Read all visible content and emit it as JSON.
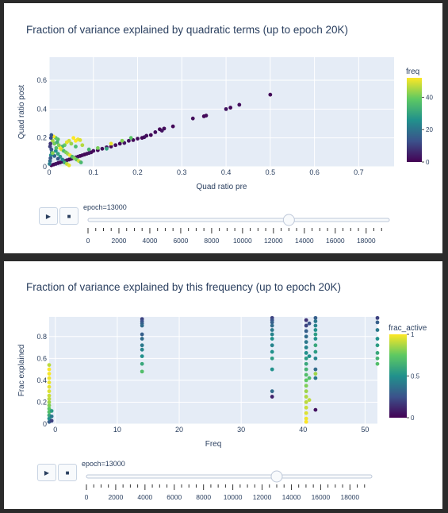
{
  "panels": [
    {
      "title": "Fraction of variance explained by quadratic terms (up to epoch 20K)",
      "slider": {
        "label_prefix": "epoch=",
        "value": 13000,
        "ticks": [
          "0",
          "2000",
          "4000",
          "6000",
          "8000",
          "10000",
          "12000",
          "14000",
          "16000",
          "18000"
        ]
      },
      "buttons": {
        "play": "▶",
        "pause": "■"
      }
    },
    {
      "title": "Fraction of variance explained by this frequency (up to epoch 20K)",
      "slider": {
        "label_prefix": "epoch=",
        "value": 13000,
        "ticks": [
          "0",
          "2000",
          "4000",
          "6000",
          "8000",
          "10000",
          "12000",
          "14000",
          "16000",
          "18000"
        ]
      },
      "buttons": {
        "play": "▶",
        "pause": "■"
      }
    }
  ],
  "chart_data": [
    {
      "type": "scatter",
      "title": "Fraction of variance explained by quadratic terms (up to epoch 20K)",
      "xlabel": "Quad ratio pre",
      "ylabel": "Quad ratio post",
      "xlim": [
        0,
        0.78
      ],
      "ylim": [
        0,
        0.76
      ],
      "xticks": [
        0,
        0.1,
        0.2,
        0.3,
        0.4,
        0.5,
        0.6,
        0.7
      ],
      "xtick_labels": [
        "0",
        "0.1",
        "0.2",
        "0.3",
        "0.4",
        "0.5",
        "0.6",
        "0.7"
      ],
      "yticks": [
        0,
        0.2,
        0.4,
        0.6
      ],
      "ytick_labels": [
        "0",
        "0.2",
        "0.4",
        "0.6"
      ],
      "grid": true,
      "colorbar": {
        "title": "freq",
        "range": [
          0,
          52
        ],
        "ticks": [
          0,
          20,
          40
        ],
        "tick_labels": [
          "0",
          "20",
          "40"
        ],
        "colorscale": "viridis"
      },
      "points": [
        {
          "x": 0.5,
          "y": 0.5,
          "c": 1
        },
        {
          "x": 0.43,
          "y": 0.43,
          "c": 2
        },
        {
          "x": 0.41,
          "y": 0.41,
          "c": 1
        },
        {
          "x": 0.4,
          "y": 0.4,
          "c": 3
        },
        {
          "x": 0.355,
          "y": 0.355,
          "c": 2
        },
        {
          "x": 0.35,
          "y": 0.35,
          "c": 1
        },
        {
          "x": 0.325,
          "y": 0.335,
          "c": 2
        },
        {
          "x": 0.28,
          "y": 0.28,
          "c": 1
        },
        {
          "x": 0.26,
          "y": 0.265,
          "c": 2
        },
        {
          "x": 0.255,
          "y": 0.25,
          "c": 3
        },
        {
          "x": 0.25,
          "y": 0.26,
          "c": 1
        },
        {
          "x": 0.24,
          "y": 0.24,
          "c": 2
        },
        {
          "x": 0.23,
          "y": 0.22,
          "c": 1
        },
        {
          "x": 0.22,
          "y": 0.215,
          "c": 2
        },
        {
          "x": 0.215,
          "y": 0.205,
          "c": 3
        },
        {
          "x": 0.21,
          "y": 0.2,
          "c": 1
        },
        {
          "x": 0.2,
          "y": 0.195,
          "c": 2
        },
        {
          "x": 0.19,
          "y": 0.185,
          "c": 1
        },
        {
          "x": 0.18,
          "y": 0.18,
          "c": 2
        },
        {
          "x": 0.17,
          "y": 0.165,
          "c": 3
        },
        {
          "x": 0.16,
          "y": 0.16,
          "c": 1
        },
        {
          "x": 0.15,
          "y": 0.15,
          "c": 2
        },
        {
          "x": 0.14,
          "y": 0.14,
          "c": 1
        },
        {
          "x": 0.13,
          "y": 0.135,
          "c": 3
        },
        {
          "x": 0.12,
          "y": 0.125,
          "c": 2
        },
        {
          "x": 0.11,
          "y": 0.115,
          "c": 1
        },
        {
          "x": 0.1,
          "y": 0.11,
          "c": 2
        },
        {
          "x": 0.095,
          "y": 0.1,
          "c": 1
        },
        {
          "x": 0.09,
          "y": 0.095,
          "c": 3
        },
        {
          "x": 0.085,
          "y": 0.09,
          "c": 2
        },
        {
          "x": 0.08,
          "y": 0.085,
          "c": 1
        },
        {
          "x": 0.075,
          "y": 0.08,
          "c": 2
        },
        {
          "x": 0.07,
          "y": 0.075,
          "c": 1
        },
        {
          "x": 0.065,
          "y": 0.07,
          "c": 3
        },
        {
          "x": 0.06,
          "y": 0.065,
          "c": 2
        },
        {
          "x": 0.055,
          "y": 0.06,
          "c": 1
        },
        {
          "x": 0.05,
          "y": 0.055,
          "c": 2
        },
        {
          "x": 0.045,
          "y": 0.05,
          "c": 1
        },
        {
          "x": 0.04,
          "y": 0.045,
          "c": 3
        },
        {
          "x": 0.035,
          "y": 0.04,
          "c": 2
        },
        {
          "x": 0.03,
          "y": 0.035,
          "c": 1
        },
        {
          "x": 0.025,
          "y": 0.03,
          "c": 2
        },
        {
          "x": 0.02,
          "y": 0.025,
          "c": 1
        },
        {
          "x": 0.015,
          "y": 0.02,
          "c": 3
        },
        {
          "x": 0.01,
          "y": 0.015,
          "c": 2
        },
        {
          "x": 0.005,
          "y": 0.01,
          "c": 1
        },
        {
          "x": 0.11,
          "y": 0.13,
          "c": 41
        },
        {
          "x": 0.09,
          "y": 0.12,
          "c": 35
        },
        {
          "x": 0.13,
          "y": 0.125,
          "c": 30
        },
        {
          "x": 0.165,
          "y": 0.18,
          "c": 42
        },
        {
          "x": 0.185,
          "y": 0.2,
          "c": 38
        },
        {
          "x": 0.14,
          "y": 0.16,
          "c": 50
        },
        {
          "x": 0.075,
          "y": 0.15,
          "c": 46
        },
        {
          "x": 0.06,
          "y": 0.14,
          "c": 36
        },
        {
          "x": 0.05,
          "y": 0.16,
          "c": 44
        },
        {
          "x": 0.045,
          "y": 0.18,
          "c": 48
        },
        {
          "x": 0.04,
          "y": 0.17,
          "c": 50
        },
        {
          "x": 0.035,
          "y": 0.15,
          "c": 40
        },
        {
          "x": 0.03,
          "y": 0.14,
          "c": 34
        },
        {
          "x": 0.025,
          "y": 0.13,
          "c": 52
        },
        {
          "x": 0.02,
          "y": 0.19,
          "c": 37
        },
        {
          "x": 0.015,
          "y": 0.2,
          "c": 39
        },
        {
          "x": 0.01,
          "y": 0.21,
          "c": 52
        },
        {
          "x": 0.008,
          "y": 0.18,
          "c": 45
        },
        {
          "x": 0.012,
          "y": 0.16,
          "c": 41
        },
        {
          "x": 0.018,
          "y": 0.17,
          "c": 33
        },
        {
          "x": 0.022,
          "y": 0.15,
          "c": 42
        },
        {
          "x": 0.028,
          "y": 0.12,
          "c": 49
        },
        {
          "x": 0.033,
          "y": 0.11,
          "c": 35
        },
        {
          "x": 0.038,
          "y": 0.1,
          "c": 41
        },
        {
          "x": 0.042,
          "y": 0.09,
          "c": 44
        },
        {
          "x": 0.047,
          "y": 0.08,
          "c": 51
        },
        {
          "x": 0.052,
          "y": 0.07,
          "c": 36
        },
        {
          "x": 0.057,
          "y": 0.06,
          "c": 42
        },
        {
          "x": 0.062,
          "y": 0.05,
          "c": 40
        },
        {
          "x": 0.067,
          "y": 0.04,
          "c": 48
        },
        {
          "x": 0.072,
          "y": 0.03,
          "c": 35
        },
        {
          "x": 0.005,
          "y": 0.12,
          "c": 14
        },
        {
          "x": 0.006,
          "y": 0.1,
          "c": 20
        },
        {
          "x": 0.004,
          "y": 0.08,
          "c": 25
        },
        {
          "x": 0.003,
          "y": 0.06,
          "c": 14
        },
        {
          "x": 0.002,
          "y": 0.04,
          "c": 18
        },
        {
          "x": 0.001,
          "y": 0.02,
          "c": 22
        },
        {
          "x": 0.002,
          "y": 0.14,
          "c": 10
        },
        {
          "x": 0.003,
          "y": 0.16,
          "c": 8
        },
        {
          "x": 0.004,
          "y": 0.2,
          "c": 12
        },
        {
          "x": 0.005,
          "y": 0.22,
          "c": 14
        },
        {
          "x": 0.015,
          "y": 0.11,
          "c": 26
        },
        {
          "x": 0.02,
          "y": 0.09,
          "c": 30
        },
        {
          "x": 0.025,
          "y": 0.07,
          "c": 28
        },
        {
          "x": 0.03,
          "y": 0.05,
          "c": 24
        },
        {
          "x": 0.035,
          "y": 0.03,
          "c": 32
        },
        {
          "x": 0.04,
          "y": 0.02,
          "c": 46
        },
        {
          "x": 0.045,
          "y": 0.01,
          "c": 50
        },
        {
          "x": 0.06,
          "y": 0.18,
          "c": 52
        },
        {
          "x": 0.065,
          "y": 0.19,
          "c": 51
        },
        {
          "x": 0.07,
          "y": 0.185,
          "c": 49
        },
        {
          "x": 0.055,
          "y": 0.2,
          "c": 52
        },
        {
          "x": 0.02,
          "y": 0.055,
          "c": 14
        },
        {
          "x": 0.012,
          "y": 0.075,
          "c": 17
        },
        {
          "x": 0.008,
          "y": 0.095,
          "c": 42
        },
        {
          "x": 0.016,
          "y": 0.13,
          "c": 36
        }
      ]
    },
    {
      "type": "scatter",
      "title": "Fraction of variance explained by this frequency (up to epoch 20K)",
      "xlabel": "Freq",
      "ylabel": "Frac explained",
      "xlim": [
        -1,
        52
      ],
      "ylim": [
        0,
        0.98
      ],
      "xticks": [
        0,
        10,
        20,
        30,
        40,
        50
      ],
      "xtick_labels": [
        "0",
        "10",
        "20",
        "30",
        "40",
        "50"
      ],
      "yticks": [
        0,
        0.2,
        0.4,
        0.6,
        0.8
      ],
      "ytick_labels": [
        "0",
        "0.2",
        "0.4",
        "0.6",
        "0.8"
      ],
      "grid": true,
      "colorbar": {
        "title": "frac_active",
        "range": [
          0,
          1
        ],
        "ticks": [
          0,
          0.5,
          1
        ],
        "tick_labels": [
          "0",
          "0.5",
          "1"
        ],
        "colorscale": "viridis"
      },
      "points": [
        {
          "x": -1,
          "y": 0.02,
          "c": 0.3
        },
        {
          "x": -1,
          "y": 0.05,
          "c": 0.5
        },
        {
          "x": -1,
          "y": 0.08,
          "c": 0.6
        },
        {
          "x": -1,
          "y": 0.11,
          "c": 0.7
        },
        {
          "x": -1,
          "y": 0.14,
          "c": 0.75
        },
        {
          "x": -1,
          "y": 0.17,
          "c": 0.8
        },
        {
          "x": -1,
          "y": 0.2,
          "c": 0.85
        },
        {
          "x": -1,
          "y": 0.23,
          "c": 0.9
        },
        {
          "x": -1,
          "y": 0.26,
          "c": 0.92
        },
        {
          "x": -1,
          "y": 0.3,
          "c": 0.95
        },
        {
          "x": -1,
          "y": 0.34,
          "c": 0.96
        },
        {
          "x": -1,
          "y": 0.38,
          "c": 0.97
        },
        {
          "x": -1,
          "y": 0.42,
          "c": 0.98
        },
        {
          "x": -1,
          "y": 0.46,
          "c": 0.99
        },
        {
          "x": -1,
          "y": 0.5,
          "c": 1
        },
        {
          "x": -1,
          "y": 0.54,
          "c": 0.9
        },
        {
          "x": -0.6,
          "y": 0.03,
          "c": 0.2
        },
        {
          "x": -0.6,
          "y": 0.07,
          "c": 0.4
        },
        {
          "x": -0.6,
          "y": 0.12,
          "c": 0.55
        },
        {
          "x": 14,
          "y": 0.96,
          "c": 0.2
        },
        {
          "x": 14,
          "y": 0.94,
          "c": 0.25
        },
        {
          "x": 14,
          "y": 0.92,
          "c": 0.3
        },
        {
          "x": 14,
          "y": 0.9,
          "c": 0.35
        },
        {
          "x": 14,
          "y": 0.82,
          "c": 0.3
        },
        {
          "x": 14,
          "y": 0.78,
          "c": 0.35
        },
        {
          "x": 14,
          "y": 0.72,
          "c": 0.4
        },
        {
          "x": 14,
          "y": 0.68,
          "c": 0.45
        },
        {
          "x": 14,
          "y": 0.62,
          "c": 0.5
        },
        {
          "x": 14,
          "y": 0.55,
          "c": 0.6
        },
        {
          "x": 14,
          "y": 0.48,
          "c": 0.7
        },
        {
          "x": 35,
          "y": 0.97,
          "c": 0.2
        },
        {
          "x": 35,
          "y": 0.95,
          "c": 0.25
        },
        {
          "x": 35,
          "y": 0.93,
          "c": 0.3
        },
        {
          "x": 35,
          "y": 0.9,
          "c": 0.35
        },
        {
          "x": 35,
          "y": 0.86,
          "c": 0.4
        },
        {
          "x": 35,
          "y": 0.82,
          "c": 0.45
        },
        {
          "x": 35,
          "y": 0.78,
          "c": 0.5
        },
        {
          "x": 35,
          "y": 0.72,
          "c": 0.45
        },
        {
          "x": 35,
          "y": 0.66,
          "c": 0.5
        },
        {
          "x": 35,
          "y": 0.6,
          "c": 0.55
        },
        {
          "x": 35,
          "y": 0.5,
          "c": 0.5
        },
        {
          "x": 35,
          "y": 0.3,
          "c": 0.35
        },
        {
          "x": 35,
          "y": 0.25,
          "c": 0.1
        },
        {
          "x": 40.5,
          "y": 0.95,
          "c": 0.15
        },
        {
          "x": 40.5,
          "y": 0.9,
          "c": 0.2
        },
        {
          "x": 40.5,
          "y": 0.85,
          "c": 0.3
        },
        {
          "x": 40.5,
          "y": 0.8,
          "c": 0.35
        },
        {
          "x": 40.5,
          "y": 0.75,
          "c": 0.4
        },
        {
          "x": 40.5,
          "y": 0.7,
          "c": 0.45
        },
        {
          "x": 40.5,
          "y": 0.65,
          "c": 0.5
        },
        {
          "x": 40.5,
          "y": 0.6,
          "c": 0.55
        },
        {
          "x": 40.5,
          "y": 0.55,
          "c": 0.6
        },
        {
          "x": 40.5,
          "y": 0.5,
          "c": 0.65
        },
        {
          "x": 40.5,
          "y": 0.45,
          "c": 0.7
        },
        {
          "x": 40.5,
          "y": 0.4,
          "c": 0.75
        },
        {
          "x": 40.5,
          "y": 0.35,
          "c": 0.8
        },
        {
          "x": 40.5,
          "y": 0.3,
          "c": 0.85
        },
        {
          "x": 40.5,
          "y": 0.25,
          "c": 0.88
        },
        {
          "x": 40.5,
          "y": 0.2,
          "c": 0.9
        },
        {
          "x": 40.5,
          "y": 0.15,
          "c": 0.92
        },
        {
          "x": 40.5,
          "y": 0.1,
          "c": 0.95
        },
        {
          "x": 40.5,
          "y": 0.05,
          "c": 0.98
        },
        {
          "x": 40.5,
          "y": 0.02,
          "c": 1
        },
        {
          "x": 41,
          "y": 0.92,
          "c": 0.25
        },
        {
          "x": 41,
          "y": 0.62,
          "c": 0.5
        },
        {
          "x": 41,
          "y": 0.42,
          "c": 0.7
        },
        {
          "x": 41,
          "y": 0.22,
          "c": 0.9
        },
        {
          "x": 42,
          "y": 0.97,
          "c": 0.3
        },
        {
          "x": 42,
          "y": 0.94,
          "c": 0.4
        },
        {
          "x": 42,
          "y": 0.9,
          "c": 0.45
        },
        {
          "x": 42,
          "y": 0.86,
          "c": 0.5
        },
        {
          "x": 42,
          "y": 0.82,
          "c": 0.55
        },
        {
          "x": 42,
          "y": 0.78,
          "c": 0.5
        },
        {
          "x": 42,
          "y": 0.72,
          "c": 0.6
        },
        {
          "x": 42,
          "y": 0.66,
          "c": 0.55
        },
        {
          "x": 42,
          "y": 0.6,
          "c": 0.45
        },
        {
          "x": 42,
          "y": 0.5,
          "c": 0.35
        },
        {
          "x": 42,
          "y": 0.46,
          "c": 0.85
        },
        {
          "x": 42,
          "y": 0.42,
          "c": 0.4
        },
        {
          "x": 42,
          "y": 0.13,
          "c": 0.05
        },
        {
          "x": 52,
          "y": 0.97,
          "c": 0.2
        },
        {
          "x": 52,
          "y": 0.93,
          "c": 0.3
        },
        {
          "x": 52,
          "y": 0.86,
          "c": 0.4
        },
        {
          "x": 52,
          "y": 0.78,
          "c": 0.5
        },
        {
          "x": 52,
          "y": 0.72,
          "c": 0.55
        },
        {
          "x": 52,
          "y": 0.65,
          "c": 0.6
        },
        {
          "x": 52,
          "y": 0.6,
          "c": 0.65
        },
        {
          "x": 52,
          "y": 0.55,
          "c": 0.7
        }
      ]
    }
  ]
}
